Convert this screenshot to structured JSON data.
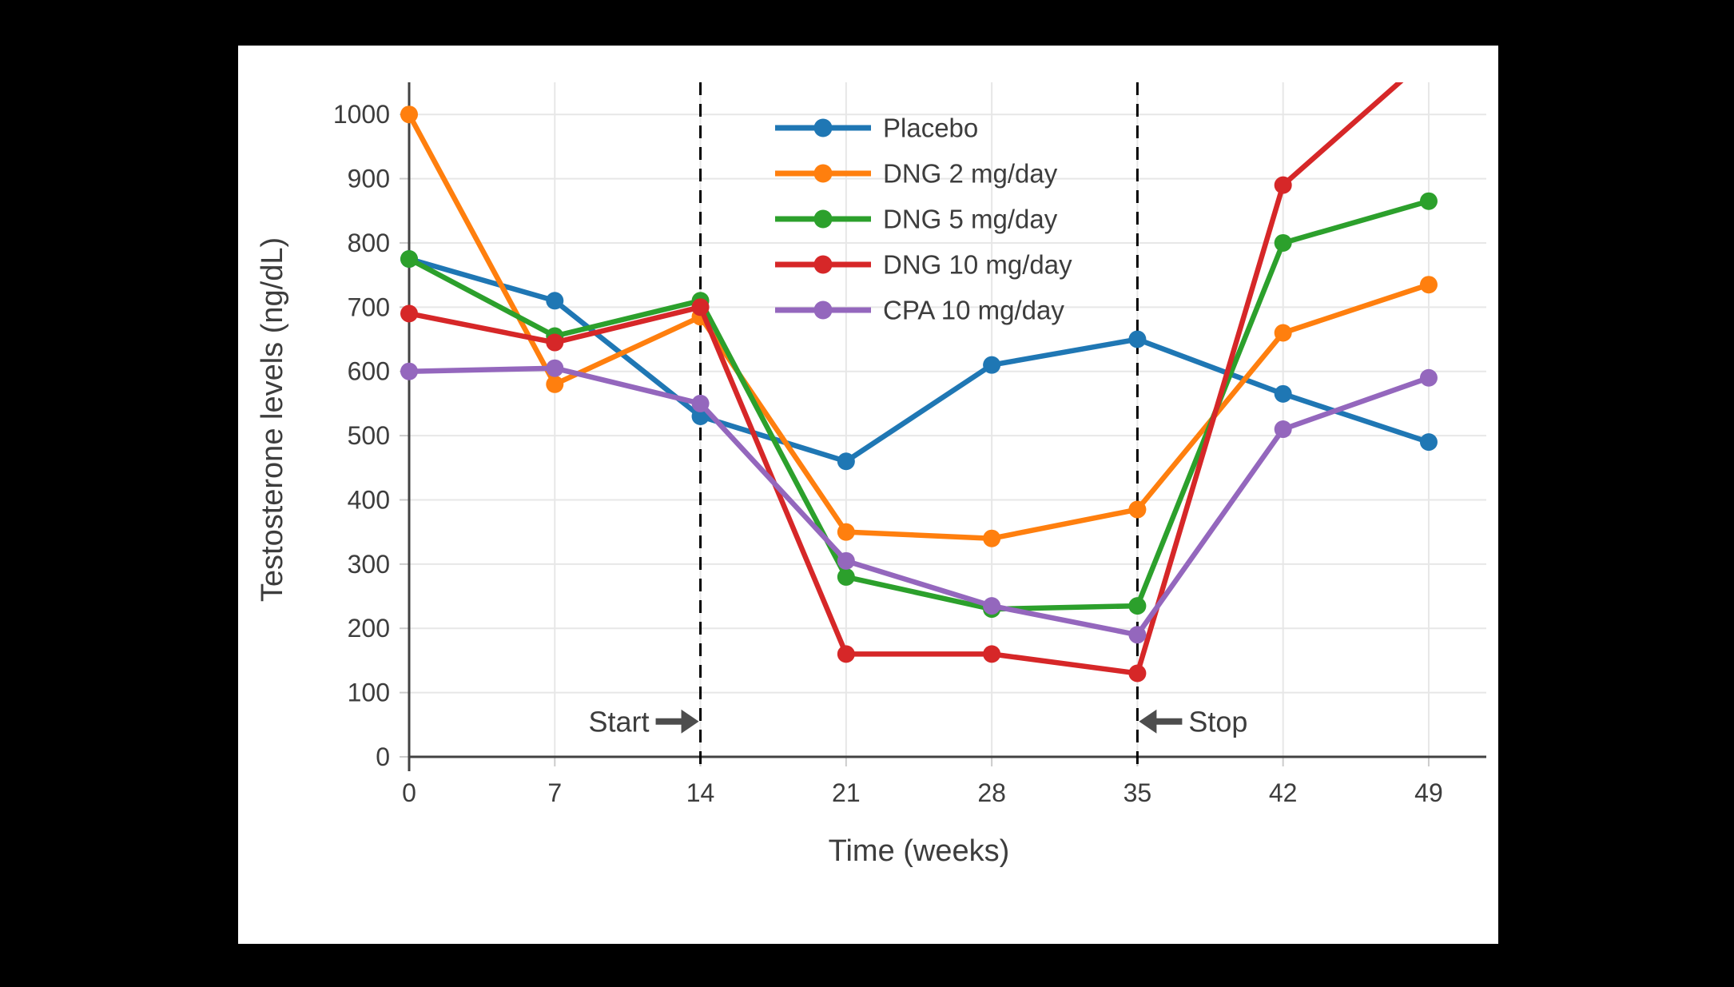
{
  "colors": {
    "page_background": "#000000",
    "card_background": "#ffffff",
    "text": "#3d3d3d",
    "axis": "#424242",
    "grid": "#e7e7e7",
    "tick": "#cccccc",
    "vline": "#000000",
    "arrow": "#4d4d4d"
  },
  "chart_data": {
    "type": "line",
    "xlabel": "Time (weeks)",
    "ylabel": "Testosterone levels (ng/dL)",
    "x": [
      0,
      7,
      14,
      21,
      28,
      35,
      42,
      49
    ],
    "xticks": [
      0,
      7,
      14,
      21,
      28,
      35,
      42,
      49
    ],
    "yticks": [
      0,
      100,
      200,
      300,
      400,
      500,
      600,
      700,
      800,
      900,
      1000
    ],
    "xlim": [
      0,
      51.8
    ],
    "ylim": [
      0,
      1050
    ],
    "grid": true,
    "legend_position": "upper center, borderless, line+dot markers",
    "series": [
      {
        "name": "Placebo",
        "color": "#1f77b4",
        "marker": "circle",
        "values": [
          775,
          710,
          530,
          460,
          610,
          650,
          565,
          490
        ]
      },
      {
        "name": "DNG 2 mg/day",
        "color": "#ff7f0e",
        "marker": "circle",
        "values": [
          1000,
          580,
          685,
          350,
          340,
          385,
          660,
          735
        ]
      },
      {
        "name": "DNG 5 mg/day",
        "color": "#2ca02c",
        "marker": "circle",
        "values": [
          775,
          655,
          710,
          280,
          230,
          235,
          800,
          865
        ]
      },
      {
        "name": "DNG 10 mg/day",
        "color": "#d62728",
        "marker": "circle",
        "values": [
          690,
          645,
          700,
          160,
          160,
          130,
          890,
          1090
        ]
      },
      {
        "name": "CPA 10 mg/day",
        "color": "#9467bd",
        "marker": "circle",
        "values": [
          600,
          605,
          550,
          305,
          235,
          190,
          510,
          590
        ]
      }
    ],
    "vlines": [
      {
        "week": 14,
        "style": "dashed",
        "color": "#000000"
      },
      {
        "week": 35,
        "style": "dashed",
        "color": "#000000"
      }
    ],
    "annotations": [
      {
        "label": "Start",
        "week": 14,
        "arrow": "right",
        "y": 55
      },
      {
        "label": "Stop",
        "week": 35,
        "arrow": "left",
        "y": 55
      }
    ]
  }
}
